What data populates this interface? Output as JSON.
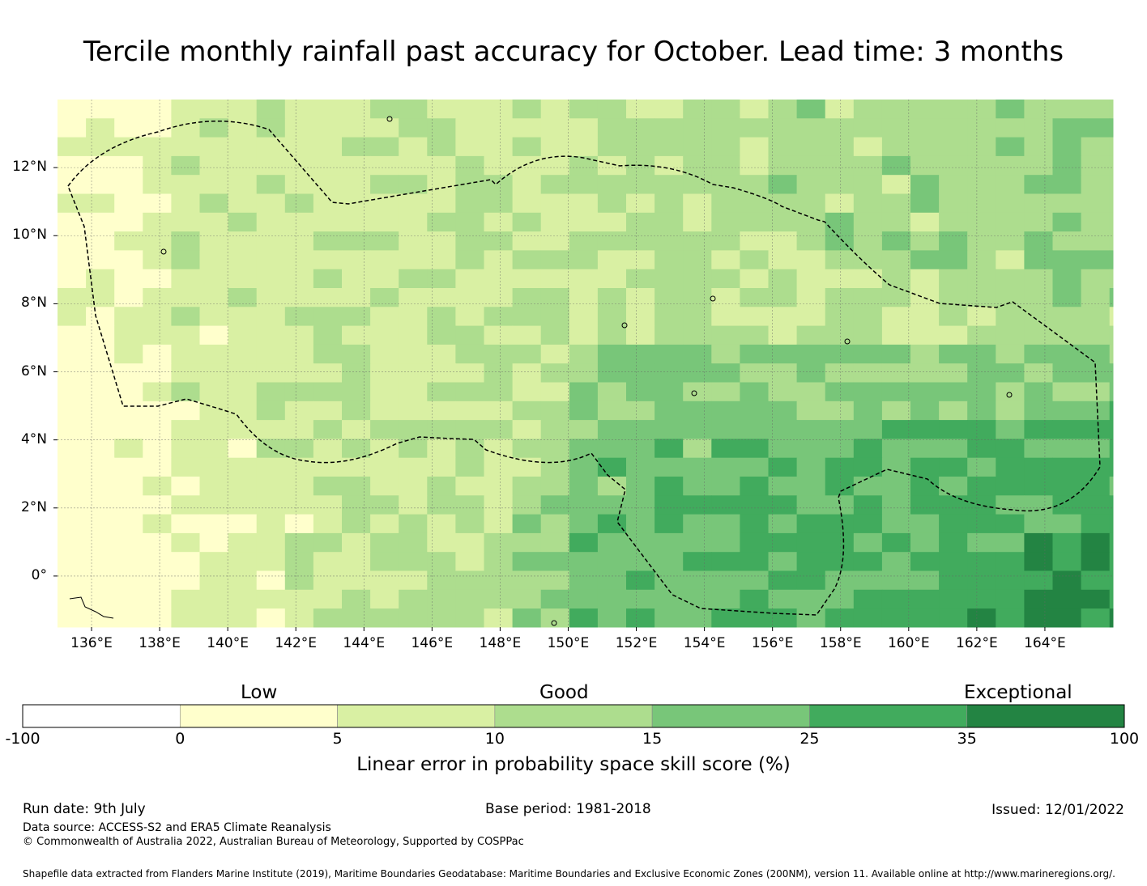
{
  "title": "Tercile monthly rainfall past accuracy for October. Lead time: 3 months",
  "map": {
    "lon_labels": [
      "136°E",
      "138°E",
      "140°E",
      "142°E",
      "144°E",
      "146°E",
      "148°E",
      "150°E",
      "152°E",
      "154°E",
      "156°E",
      "158°E",
      "160°E",
      "162°E",
      "164°E"
    ],
    "lat_labels": [
      "12°N",
      "10°N",
      "8°N",
      "6°N",
      "4°N",
      "2°N",
      "0°"
    ],
    "lon_range": [
      135,
      166
    ],
    "lat_range": [
      -1.5,
      14
    ]
  },
  "colorbar": {
    "categories": [
      {
        "label": "Low"
      },
      {
        "label": "Good"
      },
      {
        "label": "Exceptional"
      }
    ],
    "tick_labels": [
      "-100",
      "0",
      "5",
      "10",
      "15",
      "25",
      "35",
      "100"
    ],
    "colors": [
      "#ffffff",
      "#ffffcc",
      "#d9f0a3",
      "#addd8e",
      "#78c679",
      "#41ab5d",
      "#238443"
    ],
    "title": "Linear error in probability space skill score (%)"
  },
  "footer": {
    "run_date": "Run date: 9th July",
    "base_period": "Base period: 1981-2018",
    "issued": "Issued: 12/01/2022",
    "data_source": "Data source: ACCESS-S2 and ERA5 Climate Reanalysis",
    "copyright": "© Commonwealth of Australia 2022, Australian Bureau of Meteorology, Supported by COSPPac",
    "shapefile": "Shapefile data extracted from Flanders Marine Institute (2019), Maritime Boundaries Geodatabase: Maritime Boundaries and Exclusive Economic Zones (200NM), version 11. Available online at http://www.marineregions.org/."
  }
}
